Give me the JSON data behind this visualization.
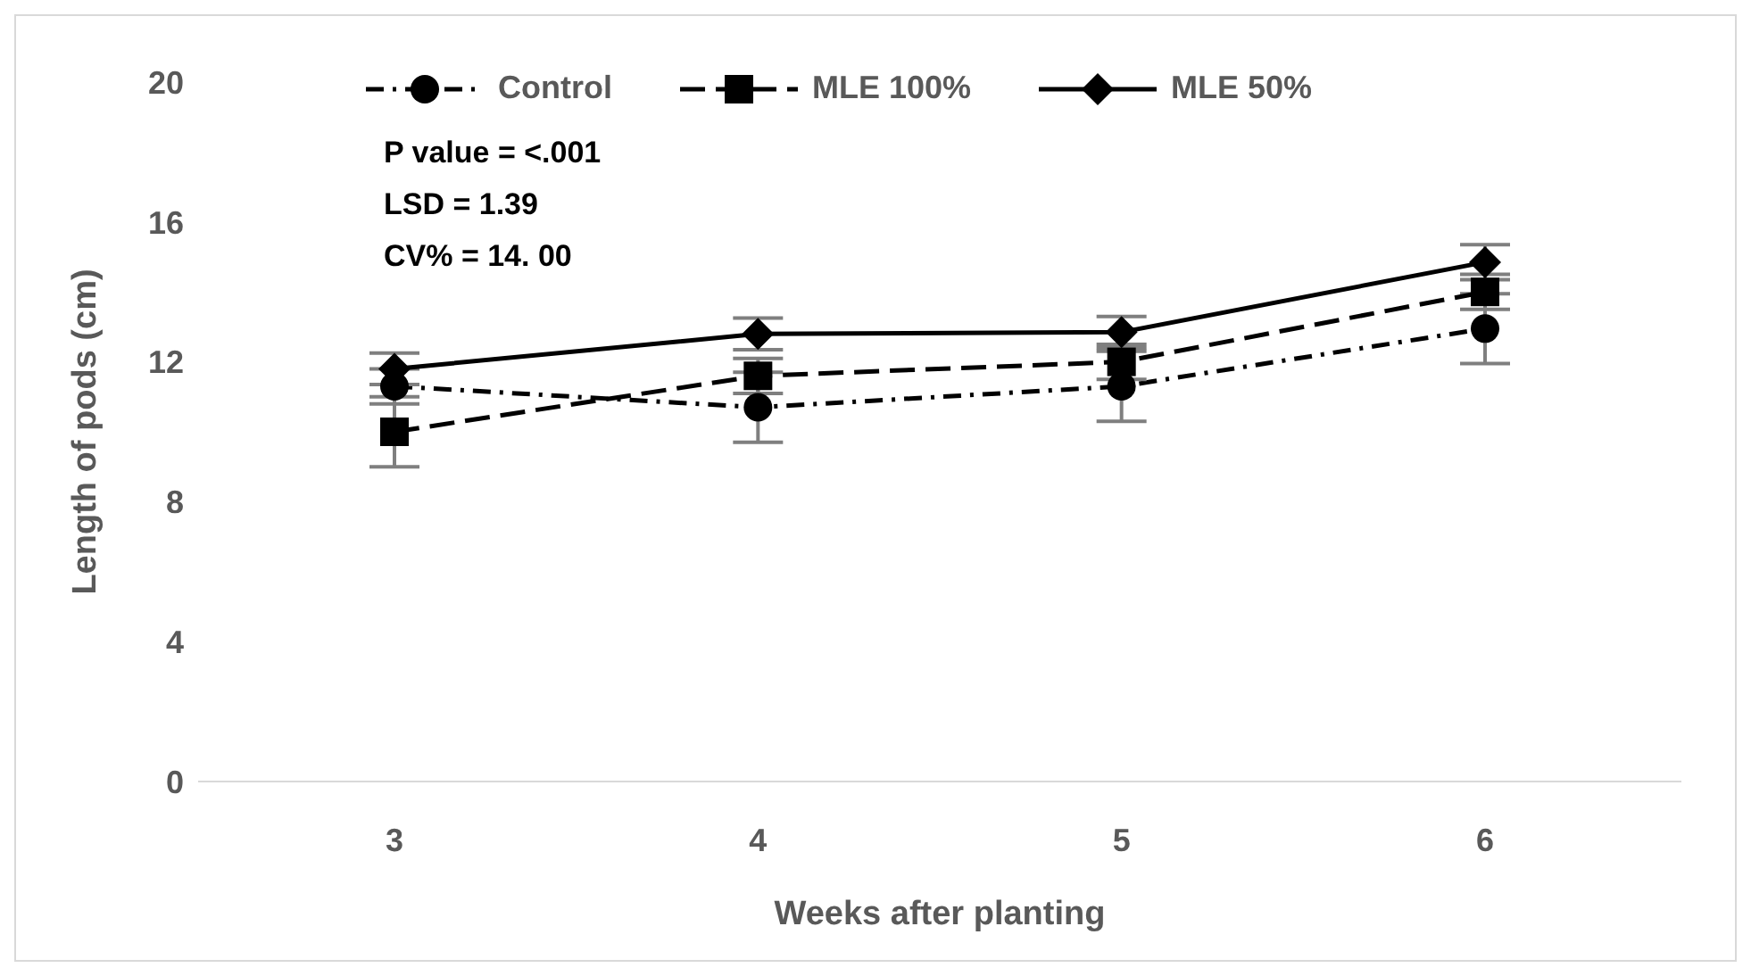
{
  "chart_data": {
    "type": "line",
    "xlabel": "Weeks after planting",
    "ylabel": "Length of pods (cm)",
    "categories": [
      "3",
      "4",
      "5",
      "6"
    ],
    "series": [
      {
        "name": "Control",
        "color": "#000000",
        "marker": "circle",
        "line_style": "dashdot",
        "values": [
          11.3,
          10.7,
          11.3,
          12.95
        ],
        "errors": [
          0.5,
          1.0,
          1.0,
          1.0
        ]
      },
      {
        "name": "MLE 100%",
        "color": "#000000",
        "marker": "square",
        "line_style": "dashed",
        "values": [
          10.0,
          11.6,
          12.0,
          14.0
        ],
        "errors": [
          1.0,
          0.5,
          0.5,
          0.5
        ]
      },
      {
        "name": "MLE 50%",
        "color": "#000000",
        "marker": "diamond",
        "line_style": "solid",
        "values": [
          11.8,
          12.8,
          12.85,
          14.85
        ],
        "errors": [
          0.45,
          0.45,
          0.45,
          0.5
        ]
      }
    ],
    "ylim": [
      0,
      20
    ],
    "yticks": [
      0,
      4,
      8,
      12,
      16,
      20
    ],
    "legend": "top",
    "annotations": [
      "P value = <.001",
      "LSD = 1.39",
      "CV% = 14. 00"
    ]
  }
}
